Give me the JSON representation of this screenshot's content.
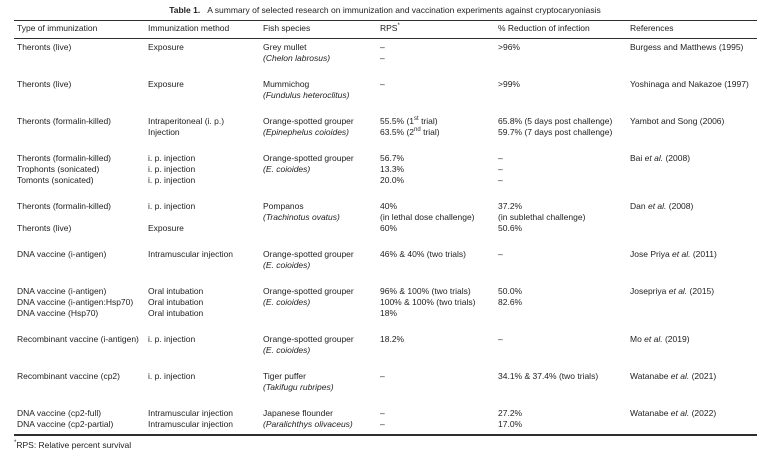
{
  "colors": {
    "background": "#ffffff",
    "text": "#1e1e1e",
    "rule": "#2e2e2e"
  },
  "table": {
    "label": "Table 1.",
    "caption": "A summary of selected research on immunization and vaccination experiments against cryptocaryoniasis",
    "columns": [
      {
        "label": "Type of immunization"
      },
      {
        "label": "Immunization method"
      },
      {
        "label": "Fish species"
      },
      {
        "label": "RPS",
        "sup": "*"
      },
      {
        "label": "% Reduction of infection"
      },
      {
        "label": "References"
      }
    ],
    "rows": [
      {
        "cells": [
          [
            "Theronts (live)"
          ],
          [
            "Exposure"
          ],
          [
            "Grey mullet",
            [
              {
                "t": "(Chelon labrosus)",
                "i": true
              }
            ]
          ],
          [
            "–",
            "–"
          ],
          [
            ">96%"
          ],
          [
            "Burgess and Matthews (1995)"
          ]
        ]
      },
      {
        "cells": [
          [
            "Theronts (live)"
          ],
          [
            "Exposure"
          ],
          [
            "Mummichog",
            [
              {
                "t": "(Fundulus heteroclitus)",
                "i": true
              }
            ]
          ],
          [
            "–"
          ],
          [
            ">99%"
          ],
          [
            "Yoshinaga and Nakazoe (1997)"
          ]
        ]
      },
      {
        "cells": [
          [
            "Theronts (formalin-killed)"
          ],
          [
            "Intraperitoneal (i. p.)",
            "Injection"
          ],
          [
            "Orange-spotted grouper",
            [
              {
                "t": "(Epinephelus coioides)",
                "i": true
              }
            ]
          ],
          [
            [
              {
                "t": "55.5% (1"
              },
              {
                "t": "st",
                "sup": true
              },
              {
                "t": " trial)"
              }
            ],
            [
              {
                "t": "63.5% (2"
              },
              {
                "t": "nd",
                "sup": true
              },
              {
                "t": " trial)"
              }
            ]
          ],
          [
            "65.8% (5 days post challenge)",
            "59.7% (7 days post challenge)"
          ],
          [
            "Yambot and Song (2006)"
          ]
        ]
      },
      {
        "cells": [
          [
            "Theronts (formalin-killed)",
            "Trophonts (sonicated)",
            "Tomonts (sonicated)"
          ],
          [
            "i. p. injection",
            "i. p. injection",
            "i. p. injection"
          ],
          [
            "Orange-spotted grouper",
            [
              {
                "t": "(E. coioides)",
                "i": true
              }
            ]
          ],
          [
            "56.7%",
            "13.3%",
            "20.0%"
          ],
          [
            "–",
            "–",
            "–"
          ],
          [
            [
              {
                "t": "Bai "
              },
              {
                "t": "et al.",
                "i": true
              },
              {
                "t": " (2008)"
              }
            ]
          ]
        ]
      },
      {
        "cells": [
          [
            "Theronts (formalin-killed)",
            "",
            "Theronts (live)"
          ],
          [
            "i. p. injection",
            "",
            "Exposure"
          ],
          [
            "Pompanos",
            [
              {
                "t": "(Trachinotus ovatus)",
                "i": true
              }
            ]
          ],
          [
            "40%",
            "(in lethal dose challenge)",
            "60%"
          ],
          [
            "37.2%",
            "(in sublethal challenge)",
            "50.6%"
          ],
          [
            [
              {
                "t": "Dan "
              },
              {
                "t": "et al.",
                "i": true
              },
              {
                "t": " (2008)"
              }
            ]
          ]
        ]
      },
      {
        "cells": [
          [
            "DNA vaccine (i-antigen)"
          ],
          [
            "Intramuscular injection"
          ],
          [
            "Orange-spotted grouper",
            [
              {
                "t": "(E. coioides)",
                "i": true
              }
            ]
          ],
          [
            "46% & 40% (two trials)"
          ],
          [
            "–"
          ],
          [
            [
              {
                "t": "Jose Priya "
              },
              {
                "t": "et al.",
                "i": true
              },
              {
                "t": " (2011)"
              }
            ]
          ]
        ]
      },
      {
        "cells": [
          [
            "DNA vaccine (i-antigen)",
            "DNA vaccine (i-antigen:Hsp70)",
            "DNA vaccine (Hsp70)"
          ],
          [
            "Oral intubation",
            "Oral intubation",
            "Oral intubation"
          ],
          [
            "Orange-spotted grouper",
            [
              {
                "t": "(E. coioides)",
                "i": true
              }
            ]
          ],
          [
            "96% & 100% (two trials)",
            "100% & 100% (two trials)",
            "18%"
          ],
          [
            "50.0%",
            "82.6%"
          ],
          [
            [
              {
                "t": "Josepriya "
              },
              {
                "t": "et al.",
                "i": true
              },
              {
                "t": " (2015)"
              }
            ]
          ]
        ]
      },
      {
        "cells": [
          [
            "Recombinant vaccine (i-antigen)"
          ],
          [
            "i. p. injection"
          ],
          [
            "Orange-spotted grouper",
            [
              {
                "t": "(E. coioides)",
                "i": true
              }
            ]
          ],
          [
            "18.2%"
          ],
          [
            "–"
          ],
          [
            [
              {
                "t": "Mo "
              },
              {
                "t": "et al.",
                "i": true
              },
              {
                "t": " (2019)"
              }
            ]
          ]
        ]
      },
      {
        "cells": [
          [
            "Recombinant vaccine (cp2)"
          ],
          [
            "i. p. injection"
          ],
          [
            "Tiger puffer",
            [
              {
                "t": "(Takifugu rubripes)",
                "i": true
              }
            ]
          ],
          [
            "–"
          ],
          [
            "34.1% & 37.4% (two trials)"
          ],
          [
            [
              {
                "t": "Watanabe "
              },
              {
                "t": "et al.",
                "i": true
              },
              {
                "t": " (2021)"
              }
            ]
          ]
        ]
      },
      {
        "cells": [
          [
            "DNA vaccine (cp2-full)",
            "DNA vaccine (cp2-partial)"
          ],
          [
            "Intramuscular injection",
            "Intramuscular injection"
          ],
          [
            "Japanese flounder",
            [
              {
                "t": "(Paralichthys olivaceus)",
                "i": true
              }
            ]
          ],
          [
            "–",
            "–"
          ],
          [
            "27.2%",
            "17.0%"
          ],
          [
            [
              {
                "t": "Watanabe "
              },
              {
                "t": "et al.",
                "i": true
              },
              {
                "t": " (2022)"
              }
            ]
          ]
        ]
      }
    ],
    "footnote": {
      "sup": "*",
      "text": "RPS: Relative percent survival"
    }
  }
}
